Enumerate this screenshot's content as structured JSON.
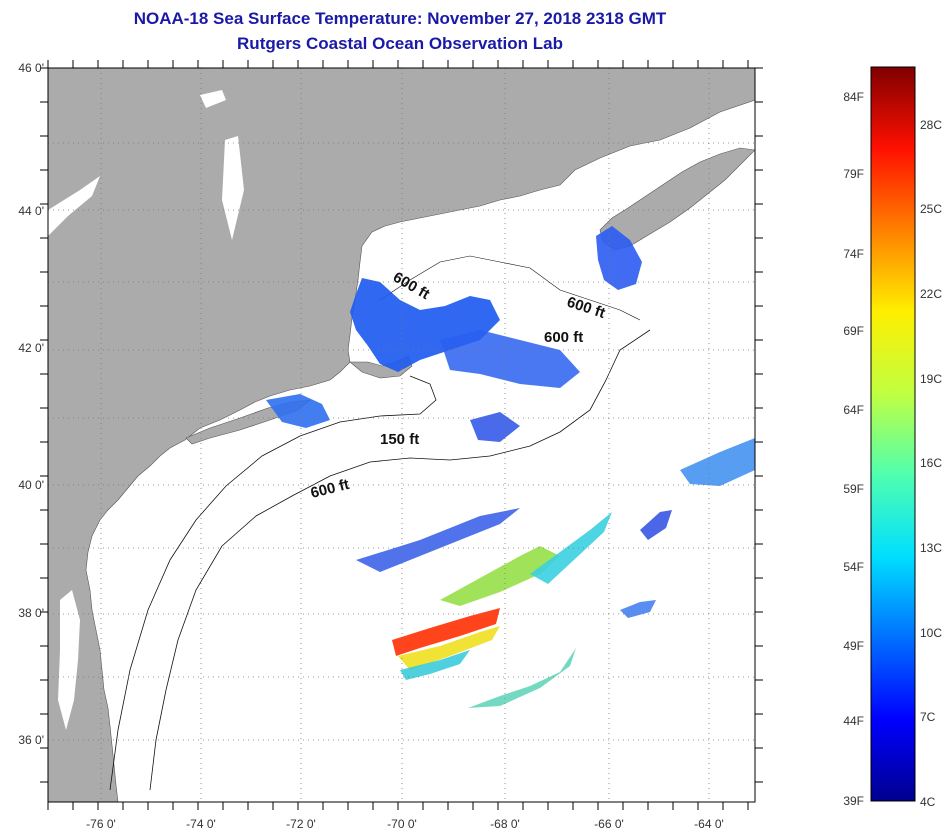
{
  "header": {
    "title": "NOAA-18 Sea Surface Temperature:  November 27, 2018 2318 GMT",
    "subtitle": "Rutgers Coastal Ocean Observation Lab"
  },
  "map": {
    "lat_labels": [
      "46 0'",
      "44 0'",
      "42 0'",
      "40 0'",
      "38 0'",
      "36 0'"
    ],
    "lon_labels": [
      "-76 0'",
      "-74 0'",
      "-72 0'",
      "-70 0'",
      "-68 0'",
      "-66 0'",
      "-64 0'"
    ],
    "contour_labels": [
      "600 ft",
      "600 ft",
      "600 ft",
      "150 ft",
      "600 ft"
    ],
    "colors": {
      "land": "#ababab",
      "ocean": "#ffffff",
      "grid": "#777777"
    }
  },
  "colorbar": {
    "fahrenheit": [
      "84F",
      "79F",
      "74F",
      "69F",
      "64F",
      "59F",
      "54F",
      "49F",
      "44F",
      "39F"
    ],
    "celsius": [
      "28C",
      "25C",
      "22C",
      "19C",
      "16C",
      "13C",
      "10C",
      "7C",
      "4C"
    ],
    "gradient": [
      "#00008f",
      "#0000ff",
      "#0070ff",
      "#00dfff",
      "#50ffaf",
      "#c0ff40",
      "#ffef00",
      "#ff8000",
      "#ff1000",
      "#800000"
    ]
  }
}
